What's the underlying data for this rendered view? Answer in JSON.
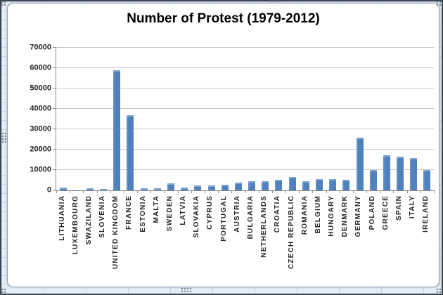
{
  "chart_data": {
    "type": "bar",
    "title": "Number of Protest (1979-2012)",
    "categories": [
      "LITHUANIA",
      "LUXEMBOURG",
      "SWAZILAND",
      "SLOVENIA",
      "UNITED KINGDOM",
      "FRANCE",
      "ESTONIA",
      "MALTA",
      "SWEDEN",
      "LATVIA",
      "SLOVAKIA",
      "CYPRUS",
      "PORTUGAL",
      "AUSTRIA",
      "BULGARIA",
      "NETHERLANDS",
      "CROATIA",
      "CZECH REPUBLIC",
      "ROMANIA",
      "BELGIUM",
      "HUNGARY",
      "DENMARK",
      "GERMANY",
      "POLAND",
      "GREECE",
      "SPAIN",
      "ITALY",
      "IRELAND"
    ],
    "values": [
      1300,
      100,
      1100,
      800,
      59000,
      37000,
      1100,
      1000,
      3500,
      1400,
      2400,
      2500,
      2800,
      3900,
      4600,
      4600,
      5100,
      6700,
      4600,
      5500,
      5600,
      5200,
      26000,
      10000,
      17300,
      16600,
      15900,
      10000
    ],
    "xlabel": "",
    "ylabel": "",
    "ylim": [
      0,
      70000
    ],
    "ytick_step": 10000,
    "ytick_labels": [
      "0",
      "10000",
      "20000",
      "30000",
      "40000",
      "50000",
      "60000",
      "70000"
    ],
    "grid": true,
    "legend": "none"
  },
  "colors": {
    "bar": "#4f81bd",
    "gridline": "#c9c9c9",
    "axis": "#8c8c8c",
    "tick_text": "#262626",
    "title_text": "#000000",
    "worksheet_bg": "#e4eef7",
    "frame_border": "#96a4b2"
  }
}
